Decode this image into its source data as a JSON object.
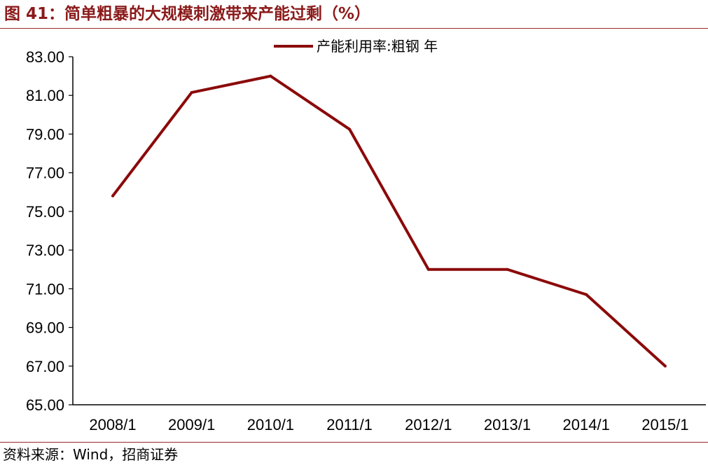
{
  "figure": {
    "title": "图 41：简单粗暴的大规模刺激带来产能过剩（%）",
    "source": "资料来源：Wind，招商证券"
  },
  "colors": {
    "series": "#8B0A0A",
    "title": "#8B1A1A",
    "rule": "#9B2B2B"
  },
  "chart_data": {
    "type": "line",
    "title": "图 41：简单粗暴的大规模刺激带来产能过剩（%）",
    "categories": [
      "2008/1",
      "2009/1",
      "2010/1",
      "2011/1",
      "2012/1",
      "2013/1",
      "2014/1",
      "2015/1"
    ],
    "series": [
      {
        "name": "产能利用率:粗钢 年",
        "values": [
          75.8,
          81.15,
          82.0,
          79.25,
          72.0,
          72.0,
          70.7,
          67.0
        ]
      }
    ],
    "ylim": [
      65,
      83
    ],
    "yticks": [
      65,
      67,
      69,
      71,
      73,
      75,
      77,
      79,
      81,
      83
    ],
    "ytick_labels": [
      "65.00",
      "67.00",
      "69.00",
      "71.00",
      "73.00",
      "75.00",
      "77.00",
      "79.00",
      "81.00",
      "83.00"
    ],
    "xlabel": "",
    "ylabel": "",
    "grid": false,
    "legend_position": "top-center"
  }
}
